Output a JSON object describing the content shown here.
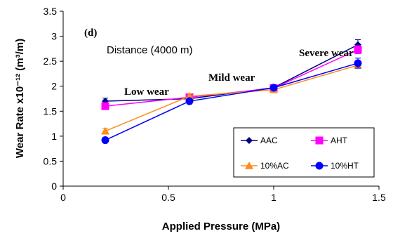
{
  "chart_data": {
    "type": "line",
    "title": "",
    "panel_label": "(d)",
    "subtitle": "Distance (4000 m)",
    "xlabel": "Applied Pressure (MPa)",
    "ylabel": "Wear Rate x10⁻¹² (m³/m)",
    "xlim": [
      0,
      1.5
    ],
    "ylim": [
      0,
      3.5
    ],
    "x_ticks": [
      "0",
      "0.5",
      "1",
      "1.5"
    ],
    "y_ticks": [
      "0",
      "0.5",
      "1",
      "1.5",
      "2",
      "2.5",
      "3",
      "3.5"
    ],
    "x": [
      0.2,
      0.6,
      1.0,
      1.4
    ],
    "series": [
      {
        "name": "AAC",
        "color": "#000080",
        "marker": "diamond",
        "values": [
          1.7,
          1.75,
          1.97,
          2.83
        ],
        "errors": [
          0.06,
          0.05,
          0.05,
          0.1
        ]
      },
      {
        "name": "AHT",
        "color": "#ff00ff",
        "marker": "square",
        "values": [
          1.6,
          1.78,
          1.96,
          2.73
        ],
        "errors": [
          0.05,
          0.05,
          0.05,
          0.08
        ]
      },
      {
        "name": "10%AC",
        "color": "#ff8c1a",
        "marker": "triangle",
        "values": [
          1.1,
          1.8,
          1.93,
          2.42
        ],
        "errors": [
          0.06,
          0.05,
          0.05,
          0.06
        ]
      },
      {
        "name": "10%HT",
        "color": "#0000ff",
        "marker": "circle",
        "values": [
          0.92,
          1.7,
          1.97,
          2.46
        ],
        "errors": [
          0.04,
          0.05,
          0.05,
          0.1
        ]
      }
    ],
    "annotations": [
      {
        "text": "Low wear",
        "x": 0.29,
        "y": 1.83,
        "style": "serif"
      },
      {
        "text": "Mild wear",
        "x": 0.69,
        "y": 2.11,
        "style": "serif"
      },
      {
        "text": "Severe wear",
        "x": 1.12,
        "y": 2.6,
        "style": "serif"
      }
    ],
    "grid": false,
    "legend_position": "bottom-right"
  }
}
